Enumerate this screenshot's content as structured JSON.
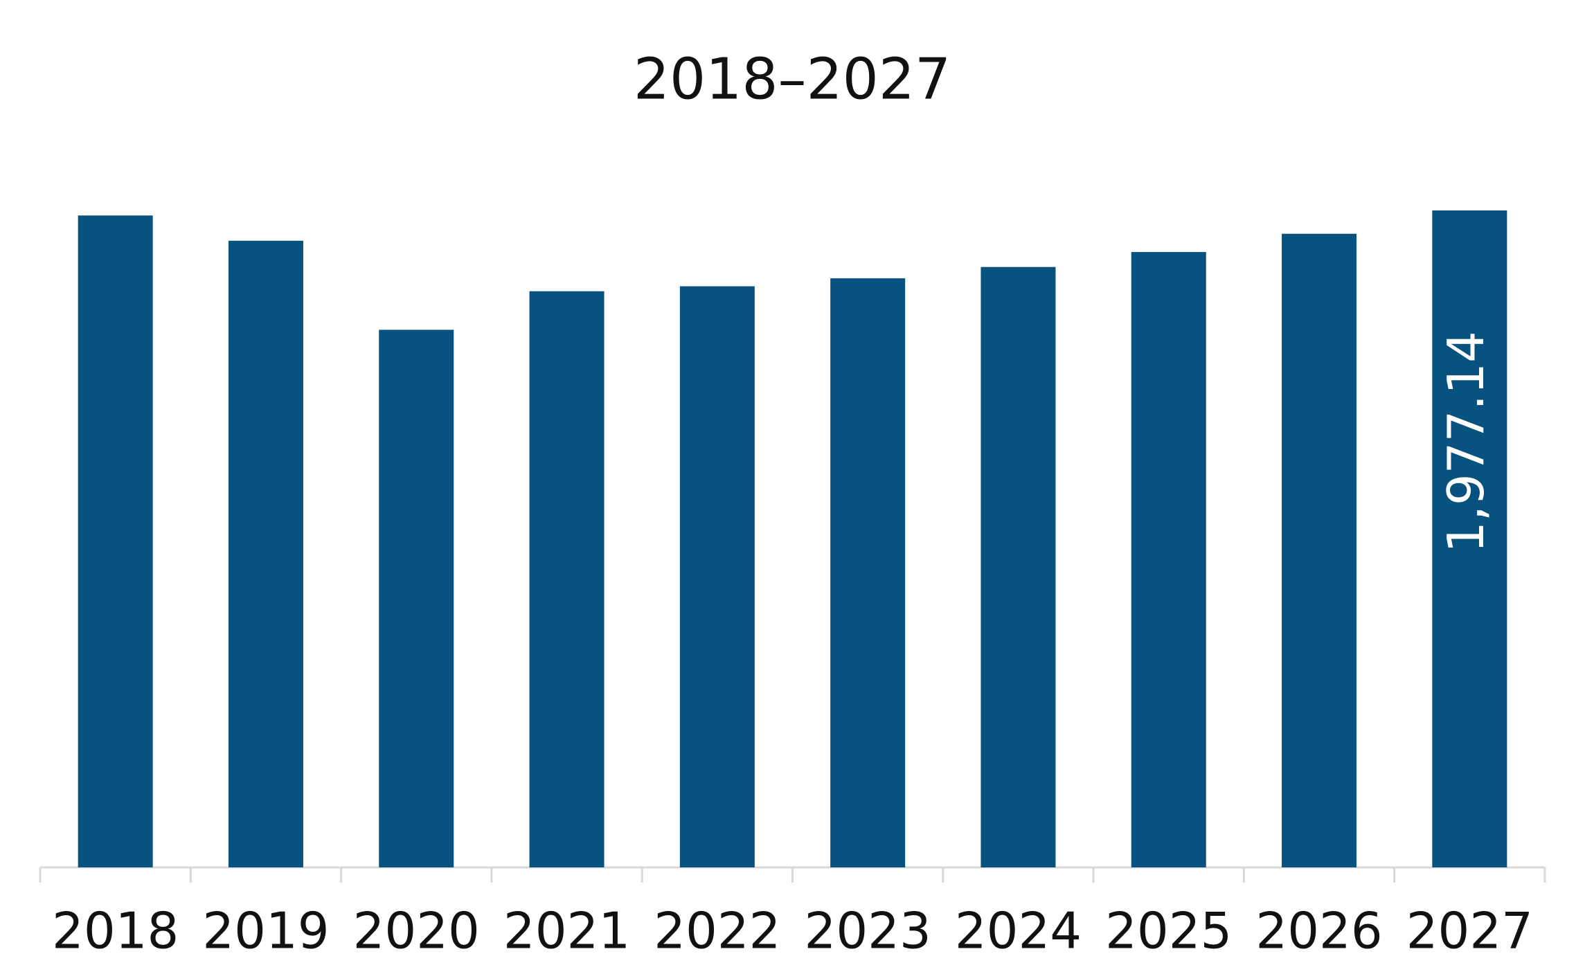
{
  "chart_data": {
    "type": "bar",
    "title": "2018–2027",
    "categories": [
      "2018",
      "2019",
      "2020",
      "2021",
      "2022",
      "2023",
      "2024",
      "2025",
      "2026",
      "2027"
    ],
    "values": [
      1962,
      1886,
      1618,
      1734,
      1749,
      1773,
      1807,
      1852,
      1907,
      1977.14
    ],
    "value_labels": [
      null,
      null,
      null,
      null,
      null,
      null,
      null,
      null,
      null,
      "1,977.14"
    ],
    "color": "#08527f"
  }
}
